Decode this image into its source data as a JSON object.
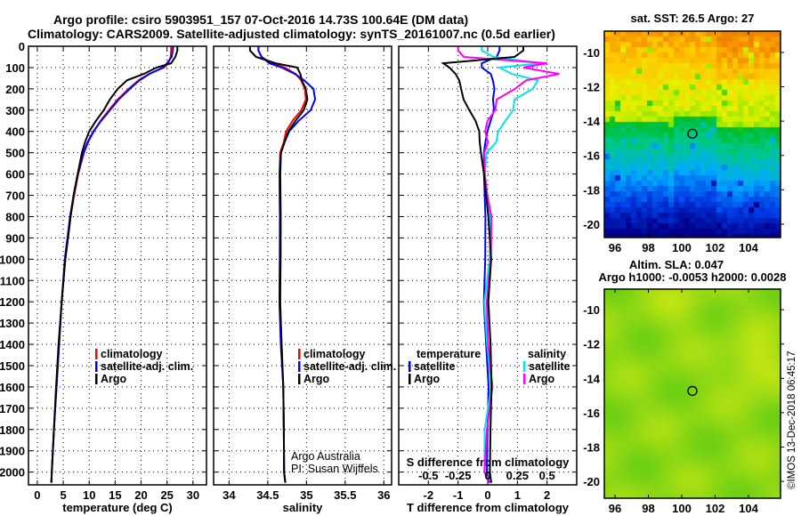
{
  "title": {
    "line1": "Argo profile: csiro 5903951_157 07-Oct-2016 14.73S 100.64E (DM data)",
    "line2": "Climatology: CARS2009. Satellite-adjusted climatology: synTS_20161007.nc (0.5d earlier)"
  },
  "colors": {
    "argo": "#000000",
    "climatology": "#ff0000",
    "satellite": "#0000ff",
    "sal_satellite": "#00e5ee",
    "sal_argo": "#ff00ff"
  },
  "chart_data": [
    {
      "type": "line",
      "name": "temperature-profile",
      "xlabel": "temperature (deg C)",
      "ylabel": "depth",
      "xlim": [
        -1.7,
        32.6
      ],
      "ylim": [
        2060,
        0
      ],
      "xticks": [
        0,
        5,
        10,
        15,
        20,
        25,
        30
      ],
      "yticks": [
        0,
        100,
        200,
        300,
        400,
        500,
        600,
        700,
        800,
        900,
        1000,
        1100,
        1200,
        1300,
        1400,
        1500,
        1600,
        1700,
        1800,
        1900,
        2000
      ],
      "legend": [
        "climatology",
        "satellite-adj. clim.",
        "Argo"
      ],
      "depth": [
        0,
        20,
        50,
        80,
        100,
        130,
        160,
        200,
        250,
        300,
        350,
        400,
        450,
        500,
        600,
        700,
        800,
        900,
        1000,
        1200,
        1400,
        1600,
        1800,
        2000,
        2050
      ],
      "series": [
        {
          "name": "climatology",
          "values": [
            25.8,
            25.8,
            25.7,
            25.2,
            24.4,
            21.5,
            19.5,
            17.6,
            15.5,
            13.8,
            12.2,
            10.9,
            9.8,
            9.0,
            7.9,
            7.1,
            6.4,
            5.9,
            5.4,
            4.7,
            4.2,
            3.7,
            3.2,
            2.8,
            2.7
          ]
        },
        {
          "name": "satellite-adj. clim.",
          "values": [
            26.2,
            26.1,
            25.9,
            25.0,
            24.2,
            21.6,
            19.7,
            17.8,
            15.7,
            14.0,
            12.3,
            10.8,
            9.7,
            8.9,
            7.8,
            7.0,
            6.3,
            5.8,
            5.3,
            4.7,
            4.2,
            3.7,
            3.2,
            2.8,
            2.7
          ]
        },
        {
          "name": "Argo",
          "values": [
            27.0,
            27.0,
            26.6,
            25.8,
            23.0,
            20.5,
            17.3,
            15.5,
            14.0,
            12.8,
            11.3,
            10.0,
            9.2,
            8.6,
            7.8,
            7.0,
            6.4,
            5.9,
            5.4,
            4.7,
            4.1,
            3.6,
            3.2,
            2.8,
            2.7
          ]
        }
      ]
    },
    {
      "type": "line",
      "name": "salinity-profile",
      "xlabel": "salinity",
      "xlim": [
        33.8,
        36.1
      ],
      "ylim": [
        2060,
        0
      ],
      "xticks": [
        34,
        34.5,
        35,
        35.5,
        36
      ],
      "legend": [
        "climatology",
        "satellite-adj. clim.",
        "Argo"
      ],
      "annotation": [
        "Argo Australia",
        "PI: Susan Wijffels"
      ],
      "depth": [
        0,
        20,
        50,
        80,
        100,
        130,
        160,
        200,
        250,
        300,
        350,
        400,
        450,
        500,
        600,
        800,
        1000,
        1200,
        1400,
        1600,
        1800,
        2000,
        2050
      ],
      "series": [
        {
          "name": "climatology",
          "values": [
            34.38,
            34.38,
            34.42,
            34.55,
            34.72,
            34.86,
            34.94,
            34.97,
            35.0,
            34.93,
            34.82,
            34.74,
            34.7,
            34.67,
            34.66,
            34.65,
            34.65,
            34.66,
            34.68,
            34.69,
            34.71,
            34.72,
            34.72
          ]
        },
        {
          "name": "satellite-adj. clim.",
          "values": [
            34.38,
            34.38,
            34.42,
            34.52,
            34.68,
            34.85,
            34.98,
            35.08,
            35.12,
            35.05,
            34.9,
            34.78,
            34.71,
            34.68,
            34.66,
            34.65,
            34.65,
            34.66,
            34.67,
            34.69,
            34.71,
            34.72,
            34.72
          ]
        },
        {
          "name": "Argo",
          "values": [
            34.27,
            34.27,
            34.35,
            34.6,
            34.88,
            34.92,
            34.95,
            34.98,
            35.02,
            34.96,
            34.86,
            34.77,
            34.71,
            34.68,
            34.67,
            34.66,
            34.66,
            34.67,
            34.68,
            34.69,
            34.71,
            34.72,
            34.72
          ]
        }
      ]
    },
    {
      "type": "line",
      "name": "difference-profile",
      "xlabel": "T difference from climatology",
      "x2label": "S difference from climatology",
      "xlim": [
        -3,
        3
      ],
      "x2lim": [
        -0.75,
        0.75
      ],
      "ylim": [
        2060,
        0
      ],
      "xticks": [
        -2,
        -1,
        0,
        1,
        2
      ],
      "x2ticks": [
        "-0.5",
        "-0.25",
        "0",
        "0.25",
        "0.5"
      ],
      "x2tick_values": [
        -0.5,
        -0.25,
        0,
        0.25,
        0.5
      ],
      "legend_temperature": {
        "title": "temperature",
        "items": [
          "satellite",
          "Argo"
        ]
      },
      "legend_salinity": {
        "title": "salinity",
        "items": [
          "satellite",
          "Argo"
        ]
      },
      "depth": [
        0,
        20,
        50,
        80,
        100,
        130,
        160,
        200,
        250,
        300,
        350,
        400,
        450,
        500,
        600,
        700,
        800,
        1000,
        1200,
        1400,
        1600,
        1800,
        2000,
        2050
      ],
      "series": [
        {
          "name": "temperature satellite",
          "values": [
            0.4,
            0.4,
            0.3,
            -0.2,
            -0.2,
            0.1,
            0.2,
            0.2,
            0.2,
            0.2,
            0.1,
            0,
            -0.1,
            -0.1,
            -0.1,
            -0.1,
            -0.1,
            -0.1,
            -0.1,
            -0.05,
            0,
            0,
            0,
            0
          ]
        },
        {
          "name": "temperature Argo",
          "values": [
            1.2,
            1.2,
            0.9,
            -1.5,
            -1.4,
            -1.0,
            -0.9,
            -0.8,
            -0.7,
            -0.6,
            -0.5,
            -0.4,
            -0.3,
            -0.2,
            -0.1,
            -0.05,
            0,
            0.1,
            0.05,
            0.1,
            0.1,
            0.1,
            0.1,
            0.1
          ]
        },
        {
          "name": "salinity satellite",
          "values": [
            -0.05,
            -0.05,
            0.05,
            0.45,
            0.1,
            0.2,
            0.45,
            0.35,
            0.25,
            0.2,
            0.15,
            0.1,
            0.05,
            0.02,
            0,
            0,
            0,
            0,
            0,
            0,
            0,
            -0.02,
            0,
            0
          ]
        },
        {
          "name": "salinity Argo",
          "values": [
            -0.25,
            -0.25,
            -0.2,
            0.5,
            0.3,
            0.6,
            0.35,
            0.2,
            0.1,
            0.05,
            0.0,
            -0.01,
            -0.02,
            0,
            0,
            0,
            0.01,
            0.01,
            0.02,
            0.01,
            0.01,
            0,
            0,
            0
          ]
        }
      ]
    },
    {
      "type": "heatmap",
      "name": "sst-map",
      "title": "sat. SST: 26.5 Argo: 27",
      "xlim": [
        95.36,
        105.92
      ],
      "ylim": [
        -20.78,
        -8.76
      ],
      "xticks": [
        96,
        98,
        100,
        102,
        104
      ],
      "yticks": [
        -10,
        -12,
        -14,
        -16,
        -18,
        -20
      ],
      "marker": {
        "lon": 100.64,
        "lat": -14.73
      }
    },
    {
      "type": "heatmap",
      "name": "sla-map",
      "title": "Altim. SLA: 0.047",
      "subtitle": "Argo h1000: -0.0053 h2000: 0.0028",
      "xlim": [
        95.36,
        105.92
      ],
      "ylim": [
        -20.98,
        -8.8
      ],
      "xticks": [
        96,
        98,
        100,
        102,
        104
      ],
      "yticks": [
        -10,
        -12,
        -14,
        -16,
        -18,
        -20
      ],
      "marker": {
        "lon": 100.64,
        "lat": -14.73
      }
    }
  ],
  "watermark": "©IMOS 13-Dec-2018 06:45:17"
}
